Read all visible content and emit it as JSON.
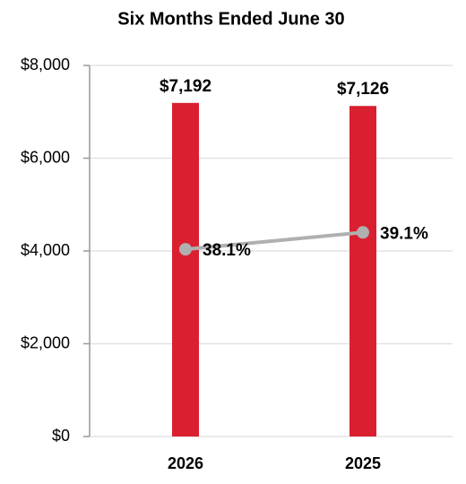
{
  "chart_data": {
    "type": "bar",
    "title": "Six Months Ended June 30",
    "categories": [
      "2026",
      "2025"
    ],
    "series": [
      {
        "type": "bar",
        "color": "#da2030",
        "values": [
          7192,
          7126
        ],
        "value_labels": [
          "$7,192",
          "$7,126"
        ]
      },
      {
        "type": "line",
        "axis": "y2",
        "color": "#b0b0b0",
        "values": [
          38.1,
          39.1
        ],
        "value_labels": [
          "38.1%",
          "39.1%"
        ]
      }
    ],
    "ylim": [
      0,
      8000
    ],
    "yticks": [
      {
        "value": 0,
        "label": "$0"
      },
      {
        "value": 2000,
        "label": "$2,000"
      },
      {
        "value": 4000,
        "label": "$4,000"
      },
      {
        "value": 6000,
        "label": "$6,000"
      },
      {
        "value": 8000,
        "label": "$8,000"
      }
    ],
    "y2lim": [
      27,
      49
    ],
    "grid": true
  }
}
